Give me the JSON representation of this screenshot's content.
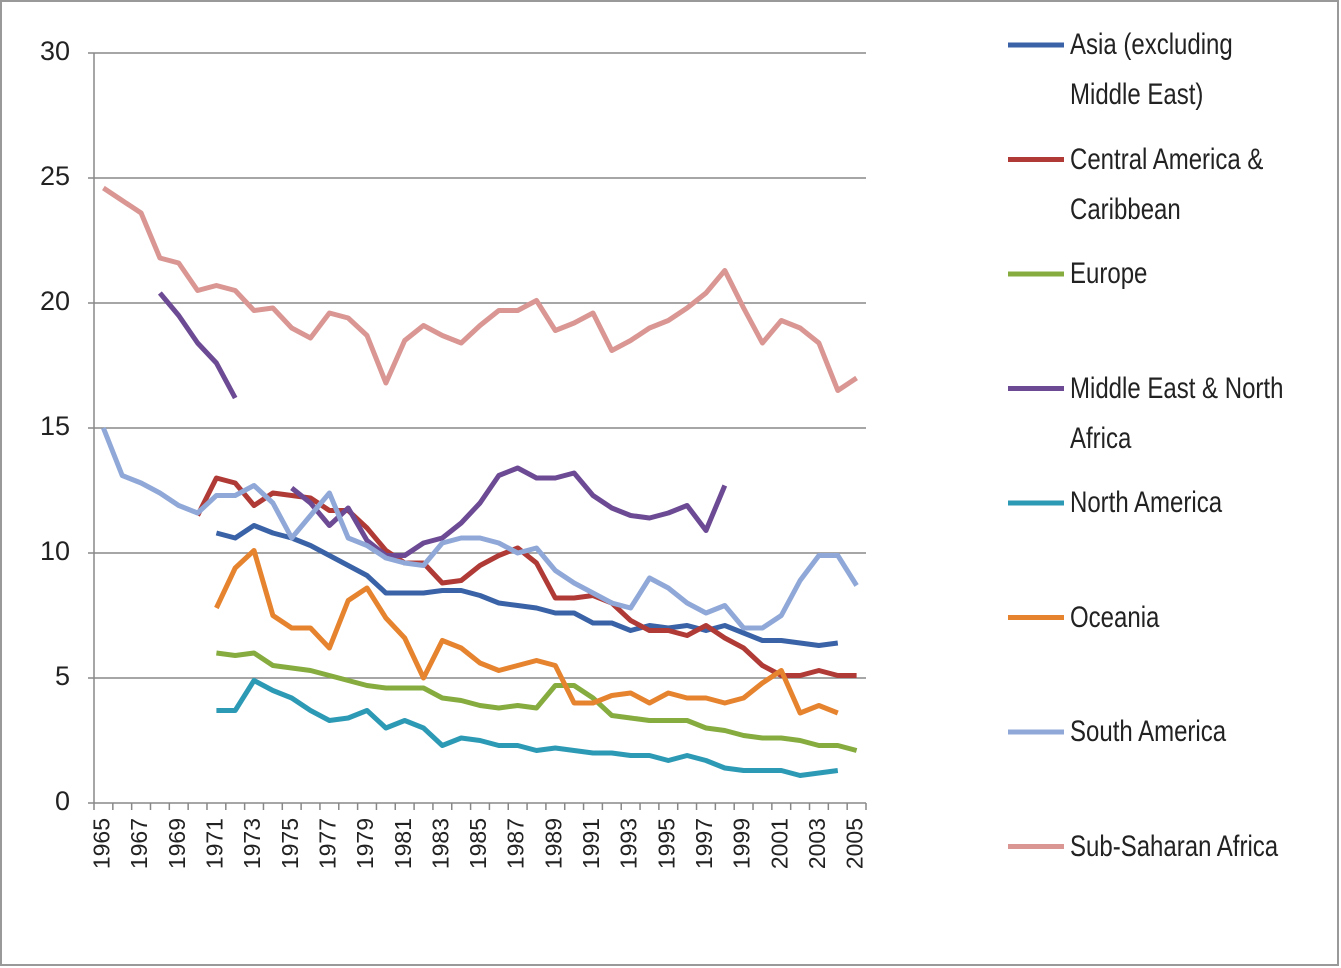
{
  "chart_data": {
    "type": "line",
    "categories": [
      "1965",
      null,
      "1967",
      null,
      "1969",
      null,
      "1971",
      null,
      "1973",
      null,
      "1975",
      null,
      "1977",
      null,
      "1979",
      null,
      "1981",
      null,
      "1983",
      null,
      "1985",
      null,
      "1987",
      null,
      "1989",
      null,
      "1991",
      null,
      "1993",
      null,
      "1995",
      null,
      "1997",
      null,
      "1999",
      null,
      "2001",
      null,
      "2003",
      null,
      "2005"
    ],
    "ylim": [
      0,
      30
    ],
    "yticks": [
      0,
      5,
      10,
      15,
      20,
      25,
      30
    ],
    "grid": true,
    "legend": "right",
    "series": [
      {
        "name": "Asia (excluding Middle East)",
        "color": "#3a62a7",
        "values": [
          null,
          null,
          null,
          null,
          null,
          null,
          10.8,
          10.6,
          11.1,
          10.8,
          10.6,
          10.3,
          9.9,
          9.5,
          9.1,
          8.4,
          8.4,
          8.4,
          8.5,
          8.5,
          8.3,
          8.0,
          7.9,
          7.8,
          7.6,
          7.6,
          7.2,
          7.2,
          6.9,
          7.1,
          7.0,
          7.1,
          6.9,
          7.1,
          6.8,
          6.5,
          6.5,
          6.4,
          6.3,
          6.4,
          null
        ]
      },
      {
        "name": "Central America & Caribbean",
        "color": "#b03a36",
        "values": [
          null,
          null,
          null,
          null,
          null,
          11.5,
          13.0,
          12.8,
          11.9,
          12.4,
          12.3,
          12.2,
          11.7,
          11.7,
          11.0,
          10.1,
          9.6,
          9.6,
          8.8,
          8.9,
          9.5,
          9.9,
          10.2,
          9.6,
          8.2,
          8.2,
          8.3,
          8.0,
          7.3,
          6.9,
          6.9,
          6.7,
          7.1,
          6.6,
          6.2,
          5.5,
          5.1,
          5.1,
          5.3,
          5.1,
          5.1
        ]
      },
      {
        "name": "Europe",
        "color": "#86ac3f",
        "values": [
          null,
          null,
          null,
          null,
          null,
          null,
          6.0,
          5.9,
          6.0,
          5.5,
          5.4,
          5.3,
          5.1,
          4.9,
          4.7,
          4.6,
          4.6,
          4.6,
          4.2,
          4.1,
          3.9,
          3.8,
          3.9,
          3.8,
          4.7,
          4.7,
          4.2,
          3.5,
          3.4,
          3.3,
          3.3,
          3.3,
          3.0,
          2.9,
          2.7,
          2.6,
          2.6,
          2.5,
          2.3,
          2.3,
          2.1
        ]
      },
      {
        "name": "Middle East & North Africa",
        "color": "#6c4a94",
        "values": [
          null,
          null,
          null,
          20.4,
          19.5,
          18.4,
          17.6,
          16.2,
          null,
          null,
          12.6,
          12.0,
          11.1,
          11.8,
          10.5,
          9.9,
          9.9,
          10.4,
          10.6,
          11.2,
          12.0,
          13.1,
          13.4,
          13.0,
          13.0,
          13.2,
          12.3,
          11.8,
          11.5,
          11.4,
          11.6,
          11.9,
          10.9,
          12.7,
          null,
          null,
          null,
          null,
          null,
          null,
          null
        ]
      },
      {
        "name": "North America",
        "color": "#2d9ab5",
        "values": [
          null,
          null,
          null,
          null,
          null,
          null,
          3.7,
          3.7,
          4.9,
          4.5,
          4.2,
          3.7,
          3.3,
          3.4,
          3.7,
          3.0,
          3.3,
          3.0,
          2.3,
          2.6,
          2.5,
          2.3,
          2.3,
          2.1,
          2.2,
          2.1,
          2.0,
          2.0,
          1.9,
          1.9,
          1.7,
          1.9,
          1.7,
          1.4,
          1.3,
          1.3,
          1.3,
          1.1,
          1.2,
          1.3,
          null
        ]
      },
      {
        "name": "Oceania",
        "color": "#e6832f",
        "values": [
          null,
          null,
          null,
          null,
          null,
          null,
          7.8,
          9.4,
          10.1,
          7.5,
          7.0,
          7.0,
          6.2,
          8.1,
          8.6,
          7.4,
          6.6,
          5.0,
          6.5,
          6.2,
          5.6,
          5.3,
          5.5,
          5.7,
          5.5,
          4.0,
          4.0,
          4.3,
          4.4,
          4.0,
          4.4,
          4.2,
          4.2,
          4.0,
          4.2,
          4.8,
          5.3,
          3.6,
          3.9,
          3.6,
          null
        ]
      },
      {
        "name": "South America",
        "color": "#8fa8d8",
        "values": [
          15.0,
          13.1,
          12.8,
          12.4,
          11.9,
          11.6,
          12.3,
          12.3,
          12.7,
          12.0,
          10.6,
          11.5,
          12.4,
          10.6,
          10.3,
          9.8,
          9.6,
          9.5,
          10.4,
          10.6,
          10.6,
          10.4,
          10.0,
          10.2,
          9.3,
          8.8,
          8.4,
          8.0,
          7.8,
          9.0,
          8.6,
          8.0,
          7.6,
          7.9,
          7.0,
          7.0,
          7.5,
          8.9,
          9.9,
          9.9,
          8.7
        ]
      },
      {
        "name": "Sub-Saharan Africa",
        "color": "#d99693",
        "values": [
          24.6,
          24.1,
          23.6,
          21.8,
          21.6,
          20.5,
          20.7,
          20.5,
          19.7,
          19.8,
          19.0,
          18.6,
          19.6,
          19.4,
          18.7,
          16.8,
          18.5,
          19.1,
          18.7,
          18.4,
          19.1,
          19.7,
          19.7,
          20.1,
          18.9,
          19.2,
          19.6,
          18.1,
          18.5,
          19.0,
          19.3,
          19.8,
          20.4,
          21.3,
          19.8,
          18.4,
          19.3,
          19.0,
          18.4,
          16.5,
          17.0
        ]
      }
    ]
  }
}
